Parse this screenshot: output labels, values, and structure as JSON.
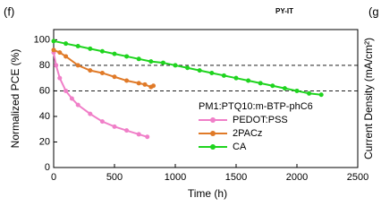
{
  "chart_data": {
    "type": "line",
    "annotations": [
      "(f)",
      "PY-IT",
      "(g"
    ],
    "xlabel": "Time (h)",
    "ylabel": "Normalized PCE (%)",
    "y2label": "Current Density (mA/cm²)",
    "legend_title": "PM1:PTQ10:m-BTP-phC6",
    "xlim": [
      0,
      2500
    ],
    "xticks": [
      0,
      500,
      1000,
      1500,
      2000,
      2500
    ],
    "ylim": [
      0,
      108
    ],
    "yticks": [
      0,
      20,
      40,
      60,
      80,
      100
    ],
    "hlines": [
      80,
      60
    ],
    "series": [
      {
        "name": "PEDOT:PSS",
        "color": "#f07fc8",
        "x": [
          0,
          20,
          50,
          100,
          150,
          200,
          300,
          400,
          500,
          600,
          700,
          770
        ],
        "values": [
          90,
          80,
          70,
          60,
          54,
          49,
          42,
          36,
          32,
          29,
          26,
          24
        ]
      },
      {
        "name": "2PACz",
        "color": "#e07a28",
        "x": [
          0,
          50,
          100,
          200,
          300,
          400,
          500,
          600,
          700,
          750,
          800,
          820
        ],
        "values": [
          92,
          90,
          87,
          80,
          76,
          74,
          71,
          68,
          66,
          65,
          63,
          64
        ]
      },
      {
        "name": "CA",
        "color": "#1fd41f",
        "x": [
          0,
          100,
          200,
          300,
          400,
          500,
          600,
          700,
          800,
          900,
          1000,
          1100,
          1200,
          1300,
          1400,
          1500,
          1600,
          1700,
          1800,
          1900,
          2000,
          2100,
          2200
        ],
        "values": [
          99,
          97,
          95,
          93,
          91,
          89,
          87,
          85,
          83,
          82,
          80,
          78,
          76,
          74,
          72,
          70,
          68,
          66,
          64,
          62,
          60,
          58,
          57
        ]
      }
    ]
  }
}
